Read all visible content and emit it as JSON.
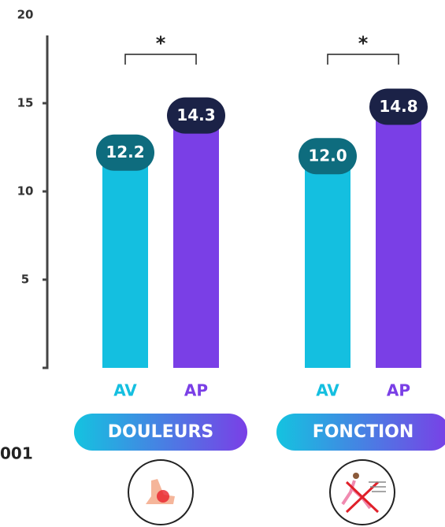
{
  "chart_data": {
    "type": "bar",
    "categories": [
      "DOULEURS",
      "FONCTION"
    ],
    "series": [
      {
        "name": "AV",
        "color": "#14bfe0",
        "label_color": "#0e6c7e",
        "values": [
          12.2,
          12.0
        ],
        "value_labels": [
          "12.2",
          "12.0"
        ]
      },
      {
        "name": "AP",
        "color": "#7a3fe6",
        "label_color": "#1b2247",
        "values": [
          14.3,
          14.8
        ]
      }
    ],
    "significance": [
      "*",
      "*"
    ],
    "ylim": [
      0,
      20
    ],
    "yticks": [
      5,
      10,
      15,
      20
    ],
    "annotation": "001"
  }
}
